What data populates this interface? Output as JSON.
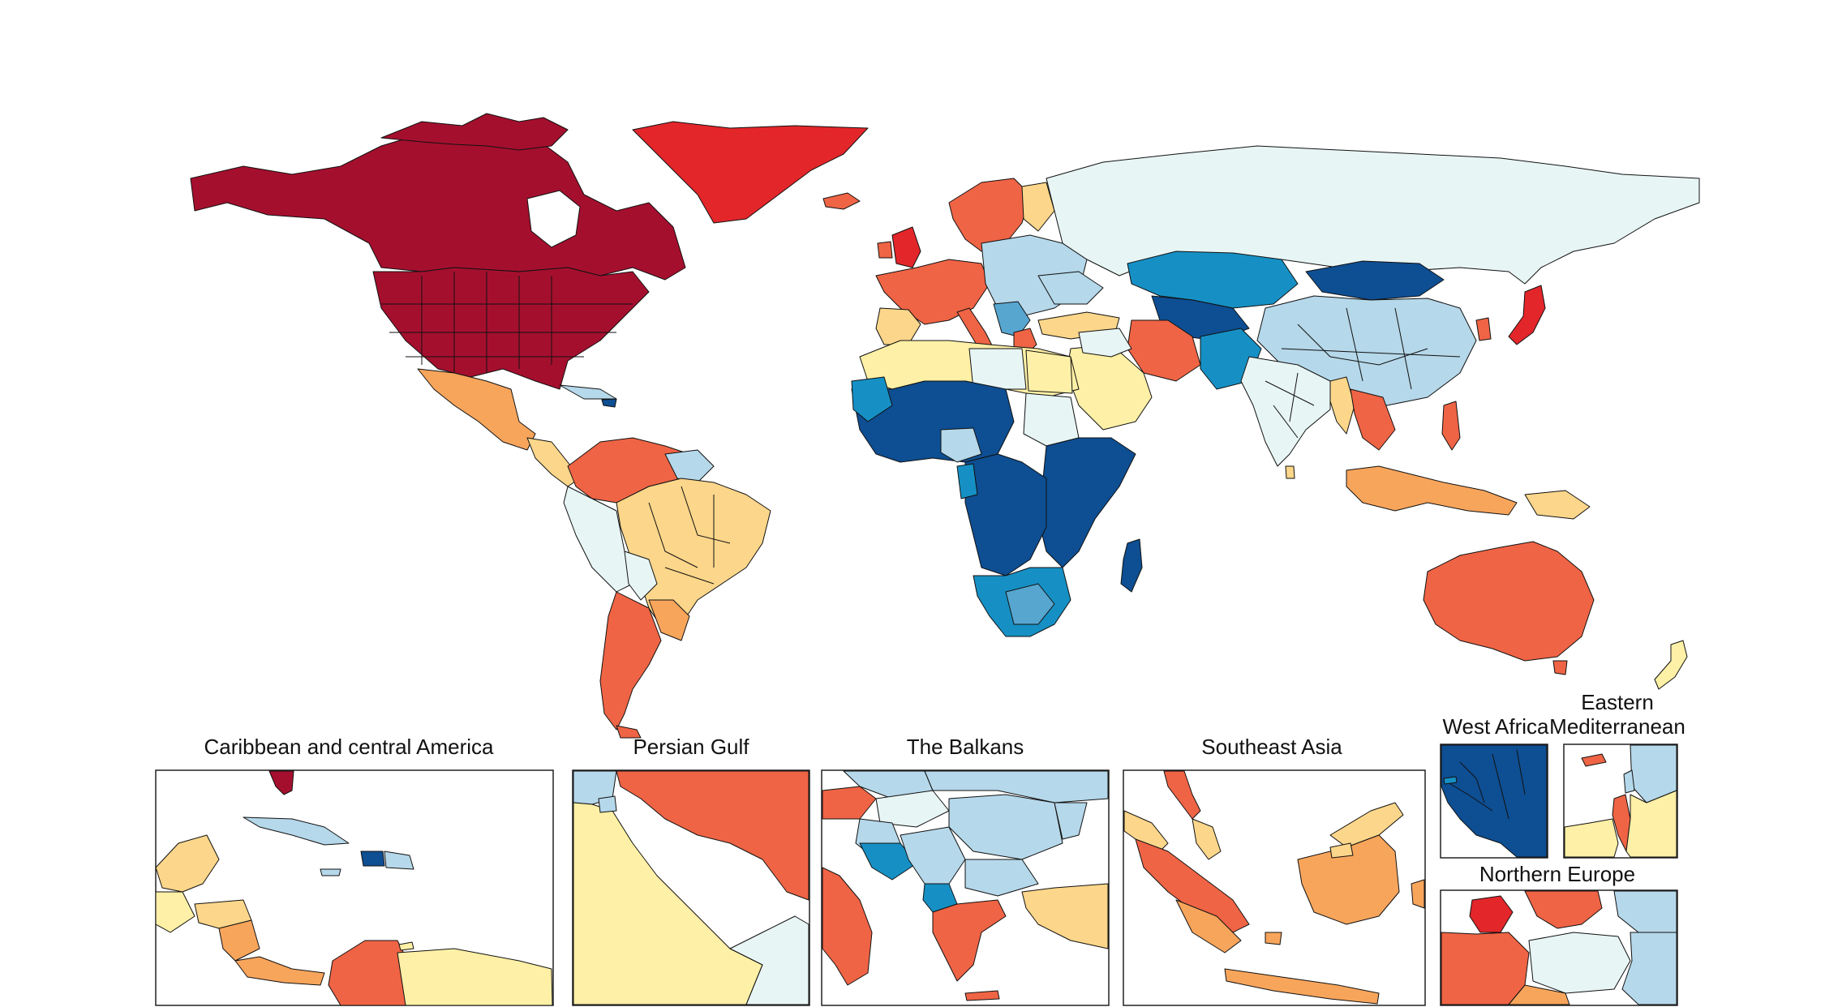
{
  "palette": {
    "c1": "#a50f2e",
    "c2": "#e3262a",
    "c3": "#ef6445",
    "c4": "#f8a55c",
    "c5": "#fcd68a",
    "c6": "#fef0a6",
    "c7": "#e8f5f5",
    "c8": "#b5d8ea",
    "c9": "#57a6d0",
    "c10": "#1690c4",
    "c11": "#0e4e92",
    "frame": "#222222",
    "border": "#111111"
  },
  "insets": {
    "caribbean": {
      "title": "Caribbean and central America"
    },
    "persian_gulf": {
      "title": "Persian Gulf"
    },
    "balkans": {
      "title": "The Balkans"
    },
    "southeast_asia": {
      "title": "Southeast Asia"
    },
    "west_africa": {
      "title": "West Africa"
    },
    "eastern_med": {
      "title_line1": "Eastern",
      "title_line2": "Mediterranean"
    },
    "northern_europe": {
      "title": "Northern Europe"
    }
  }
}
